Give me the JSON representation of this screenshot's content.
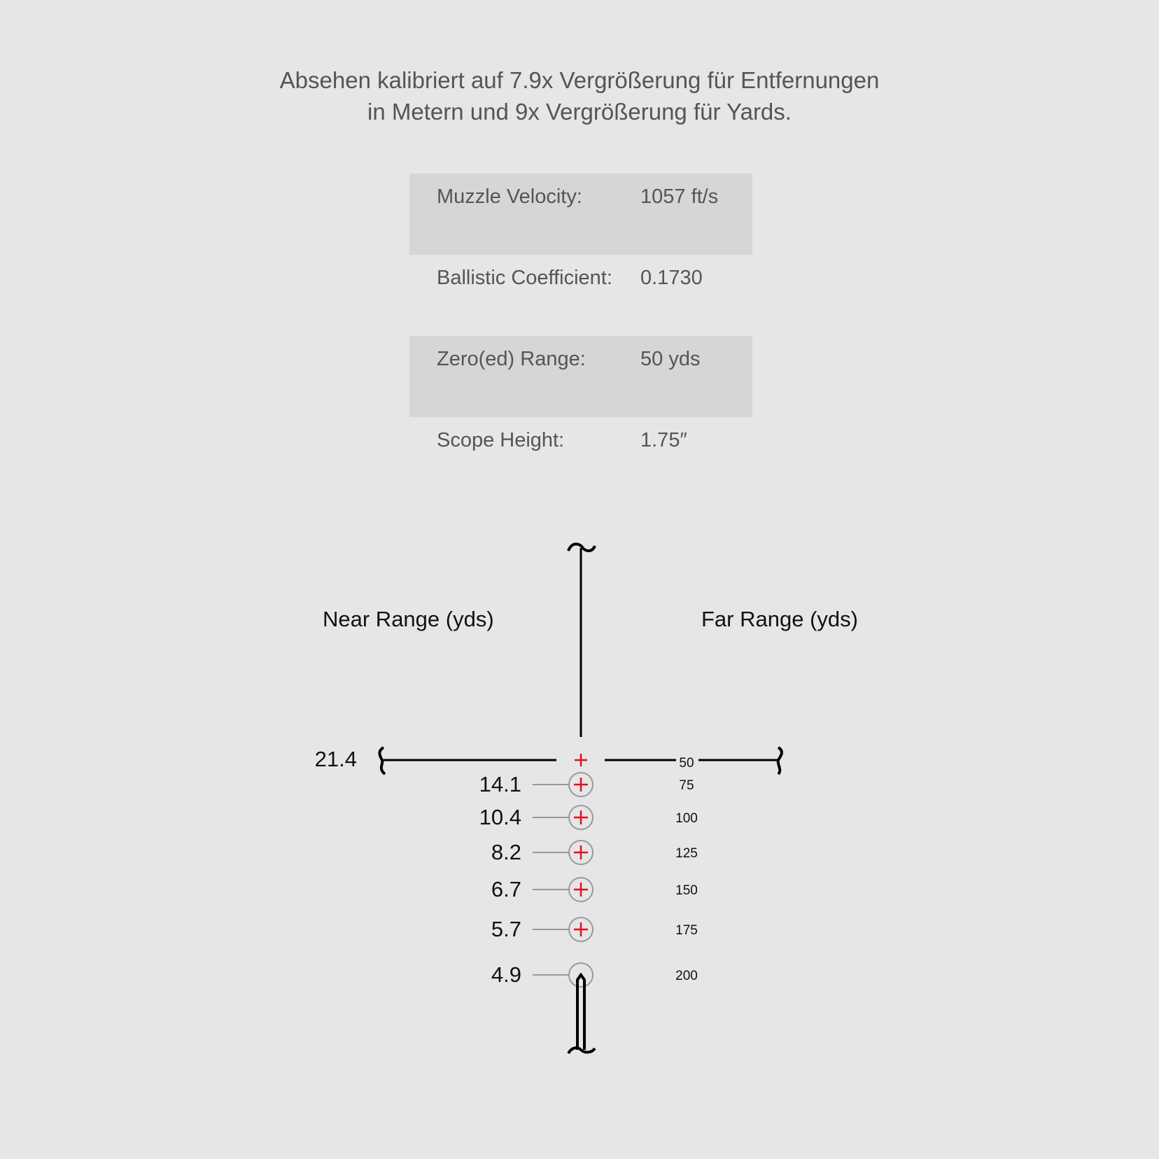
{
  "title": {
    "line1": "Absehen kalibriert auf 7.9x Vergrößerung für Entfernungen",
    "line2": "in Metern und 9x Vergrößerung für Yards."
  },
  "specs": [
    {
      "label": "Muzzle Velocity:",
      "value": "1057 ft/s"
    },
    {
      "label": "Ballistic Coefficient:",
      "value": "0.1730"
    },
    {
      "label": "Zero(ed) Range:",
      "value": "50 yds"
    },
    {
      "label": "Scope Height:",
      "value": "1.75″"
    }
  ],
  "reticle": {
    "near_label": "Near Range (yds)",
    "far_label": "Far Range (yds)",
    "zero_near": "21.4",
    "zero_far": "50",
    "marks": [
      {
        "near": "14.1",
        "far": "75"
      },
      {
        "near": "10.4",
        "far": "100"
      },
      {
        "near": "8.2",
        "far": "125"
      },
      {
        "near": "6.7",
        "far": "150"
      },
      {
        "near": "5.7",
        "far": "175"
      },
      {
        "near": "4.9",
        "far": "200"
      }
    ],
    "colors": {
      "crosshair": "#000000",
      "aimpoint": "#e01020",
      "circle": "#999999"
    }
  }
}
